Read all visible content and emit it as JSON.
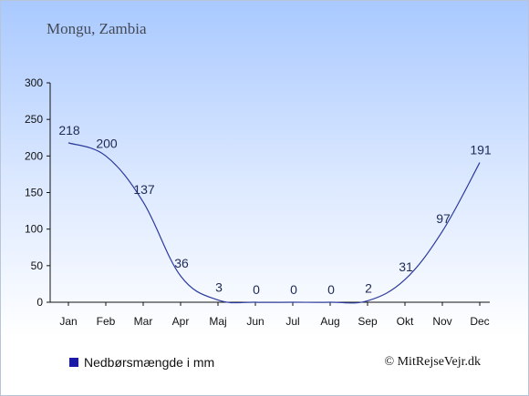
{
  "chart_data": {
    "type": "line",
    "title": "Mongu, Zambia",
    "categories": [
      "Jan",
      "Feb",
      "Mar",
      "Apr",
      "Maj",
      "Jun",
      "Jul",
      "Aug",
      "Sep",
      "Okt",
      "Nov",
      "Dec"
    ],
    "series": [
      {
        "name": "Nedbørsmængde i mm",
        "values": [
          218,
          200,
          137,
          36,
          3,
          0,
          0,
          0,
          2,
          31,
          97,
          191
        ]
      }
    ],
    "yticks": [
      0,
      50,
      100,
      150,
      200,
      250,
      300
    ],
    "ylim": [
      0,
      300
    ],
    "line_color": "#2c3a9e",
    "grid": false,
    "legend": "bottom-left"
  },
  "credit": "© MitRejseVejr.dk"
}
